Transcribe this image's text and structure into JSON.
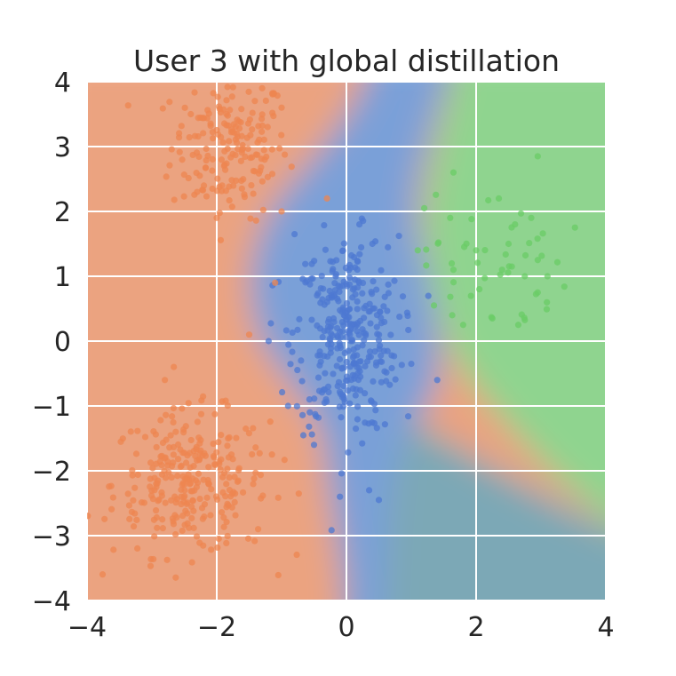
{
  "chart_data": {
    "type": "scatter",
    "title": "User 3 with global distillation",
    "xlabel": "",
    "ylabel": "",
    "xlim": [
      -4,
      4
    ],
    "ylim": [
      -4,
      4
    ],
    "xticks": [
      "−4",
      "−2",
      "0",
      "2",
      "4"
    ],
    "yticks": [
      "−4",
      "−3",
      "−2",
      "−1",
      "0",
      "1",
      "2",
      "3",
      "4"
    ],
    "xtick_values": [
      -4,
      -2,
      0,
      2,
      4
    ],
    "ytick_values": [
      -4,
      -3,
      -2,
      -1,
      0,
      1,
      2,
      3,
      4
    ],
    "grid": true,
    "legend": "none",
    "background": "decision-region shading (orange / blue / green)",
    "colors": {
      "orange_region": "#eba380",
      "blue_region": "#7aa0d8",
      "green_region": "#8fd48f",
      "mixed_region": "#7ca8b6",
      "orange_points": "#ee8550",
      "blue_points": "#4d78d2",
      "green_points": "#6acc65",
      "grid": "#ffffff",
      "text": "#262626"
    },
    "clusters": [
      {
        "color": "orange",
        "center": [
          -1.8,
          3.0
        ],
        "spread": [
          0.45,
          0.55
        ],
        "count": 180
      },
      {
        "color": "orange",
        "center": [
          -2.4,
          -2.2
        ],
        "spread": [
          0.6,
          0.55
        ],
        "count": 280
      },
      {
        "color": "blue",
        "center": [
          0.0,
          0.1
        ],
        "spread": [
          0.4,
          0.75
        ],
        "count": 330
      },
      {
        "color": "green",
        "center": [
          2.3,
          1.2
        ],
        "spread": [
          0.55,
          0.55
        ],
        "count": 38
      }
    ],
    "series": [
      {
        "color": "orange",
        "points": [
          [
            -1.1,
            0.9
          ],
          [
            -1.5,
            0.1
          ],
          [
            -2.8,
            -0.6
          ],
          [
            -1.0,
            2.0
          ],
          [
            -2.0,
            1.9
          ],
          [
            -0.3,
            2.2
          ],
          [
            -1.3,
            3.9
          ],
          [
            -2.4,
            3.5
          ],
          [
            -1.0,
            3.6
          ]
        ]
      },
      {
        "color": "blue",
        "points": [
          [
            1.4,
            -0.6
          ],
          [
            1.0,
            -0.35
          ],
          [
            -0.8,
            1.65
          ],
          [
            0.4,
            1.5
          ],
          [
            0.5,
            -2.45
          ],
          [
            0.35,
            -2.3
          ],
          [
            -0.1,
            -2.4
          ],
          [
            -0.7,
            -0.3
          ],
          [
            -1.2,
            0.0
          ],
          [
            -0.9,
            -1.0
          ],
          [
            0.2,
            1.8
          ],
          [
            -0.5,
            -1.6
          ]
        ]
      },
      {
        "color": "green",
        "points": [
          [
            2.95,
            2.85
          ],
          [
            1.65,
            2.6
          ],
          [
            1.2,
            2.05
          ],
          [
            1.6,
            1.9
          ],
          [
            2.35,
            2.2
          ],
          [
            2.6,
            1.8
          ],
          [
            2.85,
            1.9
          ],
          [
            1.1,
            1.4
          ],
          [
            1.65,
            1.1
          ],
          [
            2.0,
            1.4
          ],
          [
            2.4,
            1.1
          ],
          [
            2.55,
            1.15
          ],
          [
            2.95,
            1.25
          ],
          [
            2.75,
            1.0
          ],
          [
            3.1,
            1.0
          ],
          [
            2.95,
            0.75
          ],
          [
            2.05,
            0.8
          ],
          [
            1.35,
            0.55
          ],
          [
            1.8,
            0.25
          ],
          [
            2.25,
            0.35
          ],
          [
            2.65,
            0.25
          ],
          [
            2.5,
            1.5
          ]
        ]
      }
    ]
  }
}
